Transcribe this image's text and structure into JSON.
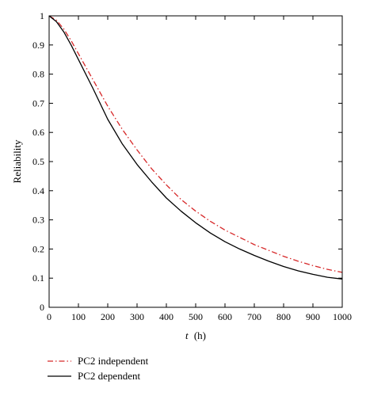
{
  "chart_data": {
    "type": "line",
    "title": "",
    "xlabel_var": "t",
    "xlabel_unit": "(h)",
    "ylabel": "Reliability",
    "xlim": [
      0,
      1000
    ],
    "ylim": [
      0,
      1
    ],
    "xticks": [
      0,
      100,
      200,
      300,
      400,
      500,
      600,
      700,
      800,
      900,
      1000
    ],
    "yticks": [
      0,
      0.1,
      0.2,
      0.3,
      0.4,
      0.5,
      0.6,
      0.7,
      0.8,
      0.9,
      1
    ],
    "grid": false,
    "legend_position": "below plot, left",
    "series": [
      {
        "name": "PC2 independent",
        "color": "#d62728",
        "style": "dash-dot",
        "x": [
          0,
          25,
          50,
          75,
          100,
          150,
          200,
          250,
          300,
          350,
          400,
          450,
          500,
          550,
          600,
          650,
          700,
          750,
          800,
          850,
          900,
          950,
          1000
        ],
        "y": [
          1.0,
          0.985,
          0.955,
          0.915,
          0.87,
          0.78,
          0.69,
          0.61,
          0.54,
          0.475,
          0.42,
          0.37,
          0.33,
          0.295,
          0.265,
          0.24,
          0.215,
          0.195,
          0.175,
          0.158,
          0.143,
          0.13,
          0.12
        ]
      },
      {
        "name": "PC2 dependent",
        "color": "#000000",
        "style": "solid",
        "x": [
          0,
          25,
          50,
          75,
          100,
          150,
          200,
          250,
          300,
          350,
          400,
          450,
          500,
          550,
          600,
          650,
          700,
          750,
          800,
          850,
          900,
          950,
          1000
        ],
        "y": [
          1.0,
          0.98,
          0.945,
          0.9,
          0.85,
          0.75,
          0.645,
          0.56,
          0.49,
          0.43,
          0.375,
          0.33,
          0.29,
          0.255,
          0.225,
          0.2,
          0.178,
          0.158,
          0.14,
          0.125,
          0.113,
          0.103,
          0.097
        ]
      }
    ]
  }
}
